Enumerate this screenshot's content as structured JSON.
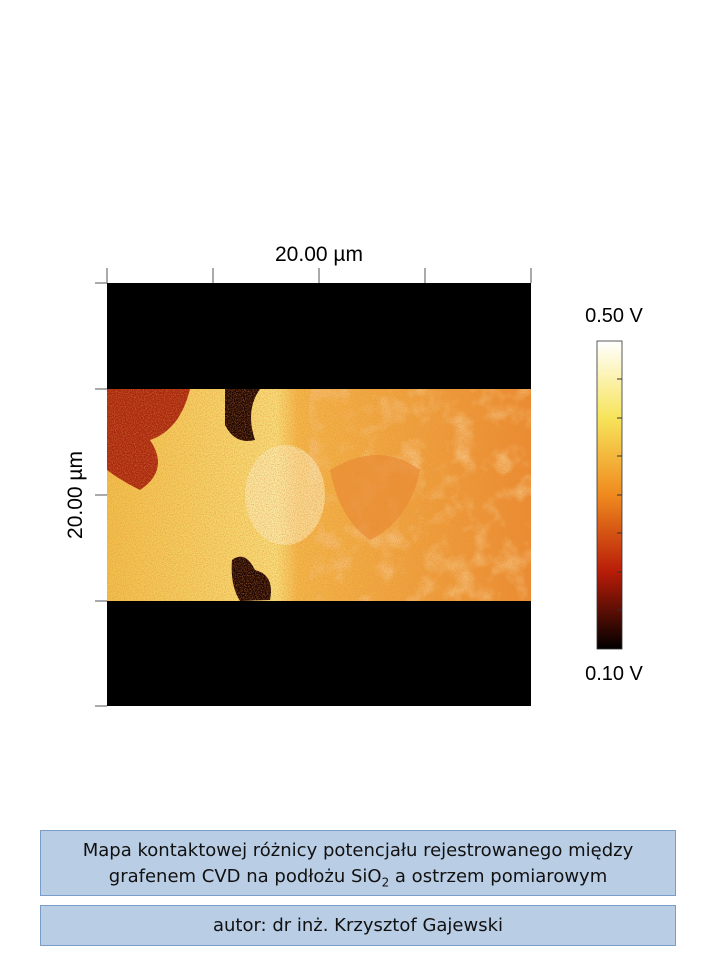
{
  "scan": {
    "x_size": "20.00 µm",
    "y_size": "20.00 µm"
  },
  "colorbar": {
    "max": "0.50 V",
    "min": "0.10 V"
  },
  "caption": {
    "line1": "Mapa kontaktowej różnicy potencjału rejestrowanego między",
    "line2": [
      "grafenem CVD na podłożu SiO",
      "2",
      " a ostrzem pomiarowym"
    ],
    "author": "autor: dr inż. Krzysztof Gajewski"
  }
}
